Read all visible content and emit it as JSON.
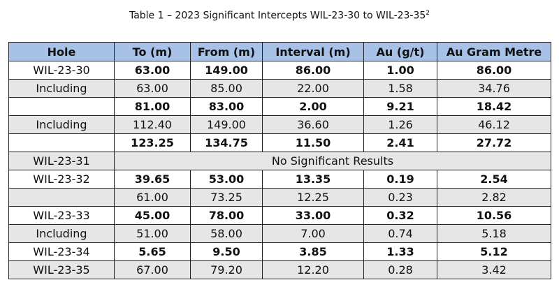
{
  "header": {
    "title": "Table 1 – 2023 Significant Intercepts WIL-23-30 to WIL-23-35",
    "superscript": "2"
  },
  "table": {
    "columns": [
      "Hole",
      "To (m)",
      "From (m)",
      "Interval (m)",
      "Au (g/t)",
      "Au Gram Metre"
    ],
    "rows": [
      {
        "hole": "WIL-23-30",
        "cells": [
          "63.00",
          "149.00",
          "86.00",
          "1.00",
          "86.00"
        ],
        "bold": true,
        "shaded": false
      },
      {
        "hole": "Including",
        "cells": [
          "63.00",
          "85.00",
          "22.00",
          "1.58",
          "34.76"
        ],
        "bold": false,
        "shaded": true
      },
      {
        "hole": null,
        "cells": [
          "81.00",
          "83.00",
          "2.00",
          "9.21",
          "18.42"
        ],
        "bold": true,
        "shaded": false
      },
      {
        "hole": "Including",
        "cells": [
          "112.40",
          "149.00",
          "36.60",
          "1.26",
          "46.12"
        ],
        "bold": false,
        "shaded": true
      },
      {
        "hole": null,
        "cells": [
          "123.25",
          "134.75",
          "11.50",
          "2.41",
          "27.72"
        ],
        "bold": true,
        "shaded": false
      },
      {
        "hole": "WIL-23-31",
        "cells": [
          "No Significant Results"
        ],
        "bold": false,
        "shaded": true
      },
      {
        "hole": "WIL-23-32",
        "cells": [
          "39.65",
          "53.00",
          "13.35",
          "0.19",
          "2.54"
        ],
        "bold": true,
        "shaded": false
      },
      {
        "hole": null,
        "cells": [
          "61.00",
          "73.25",
          "12.25",
          "0.23",
          "2.82"
        ],
        "bold": false,
        "shaded": true
      },
      {
        "hole": "WIL-23-33",
        "cells": [
          "45.00",
          "78.00",
          "33.00",
          "0.32",
          "10.56"
        ],
        "bold": true,
        "shaded": false
      },
      {
        "hole": "Including",
        "cells": [
          "51.00",
          "58.00",
          "7.00",
          "0.74",
          "5.18"
        ],
        "bold": false,
        "shaded": true
      },
      {
        "hole": "WIL-23-34",
        "cells": [
          "5.65",
          "9.50",
          "3.85",
          "1.33",
          "5.12"
        ],
        "bold": true,
        "shaded": false
      },
      {
        "hole": "WIL-23-35",
        "cells": [
          "67.00",
          "79.20",
          "12.20",
          "0.28",
          "3.42"
        ],
        "bold": false,
        "shaded": true
      }
    ]
  }
}
